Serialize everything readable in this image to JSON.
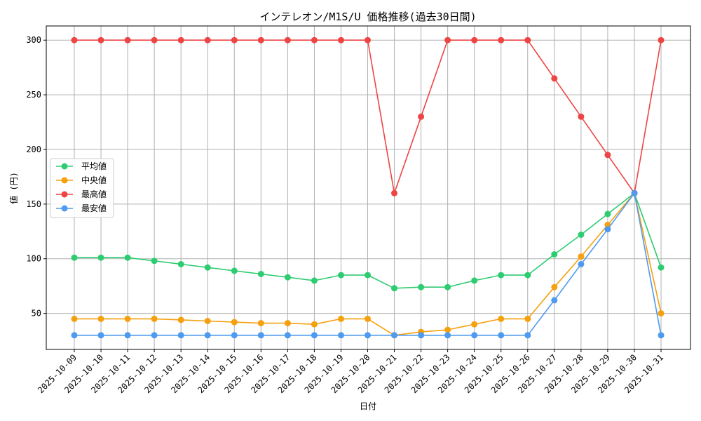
{
  "chart_data": {
    "type": "line",
    "title": "インテレオン/M1S/U 価格推移(過去30日間)",
    "xlabel": "日付",
    "ylabel": "値 (円)",
    "ylim": [
      17,
      313
    ],
    "yticks": [
      50,
      100,
      150,
      200,
      250,
      300
    ],
    "grid": true,
    "legend_position": "center-left",
    "categories": [
      "2025-10-09",
      "2025-10-10",
      "2025-10-11",
      "2025-10-12",
      "2025-10-13",
      "2025-10-14",
      "2025-10-15",
      "2025-10-16",
      "2025-10-17",
      "2025-10-18",
      "2025-10-19",
      "2025-10-20",
      "2025-10-21",
      "2025-10-22",
      "2025-10-23",
      "2025-10-24",
      "2025-10-25",
      "2025-10-26",
      "2025-10-27",
      "2025-10-28",
      "2025-10-29",
      "2025-10-30",
      "2025-10-31"
    ],
    "series": [
      {
        "name": "平均値",
        "color": "#2ecc71",
        "values": [
          101,
          101,
          101,
          98,
          95,
          92,
          89,
          86,
          83,
          80,
          85,
          85,
          73,
          74,
          74,
          80,
          85,
          85,
          104,
          122,
          141,
          160,
          92
        ]
      },
      {
        "name": "中央値",
        "color": "#f5a00f",
        "values": [
          45,
          45,
          45,
          45,
          44,
          43,
          42,
          41,
          41,
          40,
          45,
          45,
          30,
          33,
          35,
          40,
          45,
          45,
          74,
          102,
          131,
          160,
          50
        ]
      },
      {
        "name": "最高値",
        "color": "#ef4444",
        "values": [
          300,
          300,
          300,
          300,
          300,
          300,
          300,
          300,
          300,
          300,
          300,
          300,
          160,
          230,
          300,
          300,
          300,
          300,
          265,
          230,
          195,
          160,
          300
        ]
      },
      {
        "name": "最安値",
        "color": "#4f9af0",
        "values": [
          30,
          30,
          30,
          30,
          30,
          30,
          30,
          30,
          30,
          30,
          30,
          30,
          30,
          30,
          30,
          30,
          30,
          30,
          62,
          95,
          127,
          160,
          30
        ]
      }
    ]
  }
}
